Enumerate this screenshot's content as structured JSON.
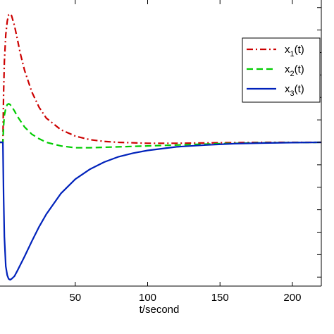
{
  "chart_data": {
    "type": "line",
    "xlabel": "t/second",
    "ylabel": "",
    "xlim": [
      -2,
      220
    ],
    "ylim": [
      -1.6,
      1.6
    ],
    "x_ticks": [
      50,
      100,
      150,
      200
    ],
    "grid": false,
    "legend_position": "top-right",
    "series": [
      {
        "name": "x",
        "subscript": "1",
        "suffix": "(t)",
        "color": "#cc0000",
        "style": "dash-dot",
        "x": [
          -2,
          0,
          0.5,
          1,
          2,
          3,
          4,
          5,
          6,
          8,
          10,
          12,
          15,
          20,
          25,
          30,
          40,
          50,
          60,
          70,
          80,
          100,
          120,
          150,
          180,
          220
        ],
        "y": [
          0,
          0,
          0.55,
          0.9,
          1.2,
          1.35,
          1.42,
          1.43,
          1.41,
          1.3,
          1.15,
          0.99,
          0.8,
          0.56,
          0.39,
          0.27,
          0.14,
          0.07,
          0.03,
          0.01,
          0.0,
          -0.01,
          -0.01,
          -0.005,
          0.0,
          0.0
        ]
      },
      {
        "name": "x",
        "subscript": "2",
        "suffix": "(t)",
        "color": "#00cc00",
        "style": "dashed",
        "x": [
          -2,
          0,
          0.5,
          1,
          2,
          3,
          4,
          5,
          6,
          8,
          10,
          15,
          20,
          25,
          30,
          40,
          50,
          60,
          70,
          80,
          100,
          120,
          150,
          180,
          220
        ],
        "y": [
          0,
          0,
          0.18,
          0.3,
          0.38,
          0.42,
          0.43,
          0.42,
          0.4,
          0.35,
          0.29,
          0.17,
          0.09,
          0.04,
          0.0,
          -0.04,
          -0.06,
          -0.06,
          -0.055,
          -0.05,
          -0.04,
          -0.03,
          -0.015,
          -0.005,
          0.0
        ]
      },
      {
        "name": "x",
        "subscript": "3",
        "suffix": "(t)",
        "color": "#0022bb",
        "style": "solid",
        "x": [
          -2,
          0,
          0.5,
          1,
          2,
          3,
          4,
          5,
          6,
          8,
          10,
          15,
          20,
          25,
          30,
          40,
          50,
          60,
          70,
          80,
          90,
          100,
          120,
          140,
          160,
          180,
          200,
          220
        ],
        "y": [
          0,
          0,
          -0.6,
          -1.05,
          -1.38,
          -1.48,
          -1.52,
          -1.53,
          -1.52,
          -1.49,
          -1.43,
          -1.27,
          -1.1,
          -0.94,
          -0.8,
          -0.57,
          -0.41,
          -0.3,
          -0.22,
          -0.16,
          -0.12,
          -0.09,
          -0.05,
          -0.03,
          -0.015,
          -0.008,
          -0.003,
          0.0
        ]
      }
    ]
  }
}
